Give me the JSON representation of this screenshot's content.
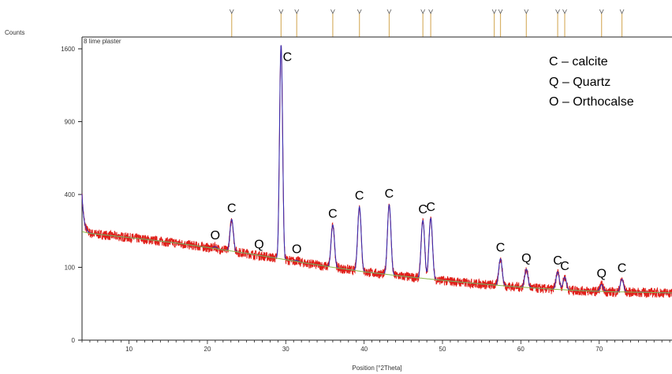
{
  "chart_data": {
    "type": "line",
    "title": "8 lime plaster",
    "ylabel": "Counts",
    "xlabel": "Position [°2Theta]",
    "xlim": [
      4,
      80
    ],
    "ylim": [
      0,
      1600
    ],
    "y_scale": "sqrt",
    "x_ticks": [
      10,
      20,
      30,
      40,
      50,
      60,
      70
    ],
    "y_ticks": [
      0,
      100,
      400,
      900,
      1600
    ],
    "grid": false,
    "legend": {
      "placement": "top-right",
      "entries": [
        "C – calcite",
        "Q – Quartz",
        "O – Orthocalse"
      ]
    },
    "reference_markers": [
      23.1,
      29.4,
      31.4,
      36.0,
      39.4,
      43.2,
      47.5,
      48.5,
      56.6,
      57.4,
      60.7,
      64.7,
      65.6,
      70.3,
      72.9
    ],
    "background": {
      "name": "background",
      "x": [
        4,
        5,
        8,
        12,
        16,
        20,
        24,
        28,
        32,
        36,
        40,
        44,
        48,
        52,
        56,
        60,
        64,
        68,
        72,
        76,
        80
      ],
      "y": [
        222,
        215,
        205,
        192,
        178,
        162,
        146,
        130,
        114,
        100,
        88,
        79,
        71,
        64,
        58,
        53,
        49,
        46,
        44,
        43,
        42
      ]
    },
    "peaks": [
      {
        "label": "O",
        "x": 21.0,
        "y": 165,
        "phase": "Orthocalse"
      },
      {
        "label": "C",
        "x": 23.1,
        "y": 275,
        "phase": "calcite"
      },
      {
        "label": "Q",
        "x": 26.6,
        "y": 135,
        "phase": "Quartz"
      },
      {
        "label": "C",
        "x": 29.4,
        "y": 1640,
        "phase": "calcite"
      },
      {
        "label": "O",
        "x": 31.4,
        "y": 120,
        "phase": "Orthocalse"
      },
      {
        "label": "C",
        "x": 36.0,
        "y": 250,
        "phase": "calcite"
      },
      {
        "label": "C",
        "x": 39.4,
        "y": 335,
        "phase": "calcite"
      },
      {
        "label": "C",
        "x": 43.2,
        "y": 345,
        "phase": "calcite"
      },
      {
        "label": "C",
        "x": 47.5,
        "y": 270,
        "phase": "calcite"
      },
      {
        "label": "C",
        "x": 48.5,
        "y": 280,
        "phase": "calcite"
      },
      {
        "label": "C",
        "x": 57.4,
        "y": 125,
        "phase": "calcite"
      },
      {
        "label": "Q",
        "x": 60.7,
        "y": 95,
        "phase": "Quartz"
      },
      {
        "label": "C",
        "x": 64.7,
        "y": 88,
        "phase": "calcite"
      },
      {
        "label": "C",
        "x": 65.6,
        "y": 75,
        "phase": "calcite"
      },
      {
        "label": "Q",
        "x": 70.3,
        "y": 58,
        "phase": "Quartz"
      },
      {
        "label": "C",
        "x": 72.9,
        "y": 70,
        "phase": "calcite"
      }
    ],
    "colors": {
      "observed": "#e0201a",
      "calculated": "#3a2fb0",
      "background": "#8bb84a",
      "reference": "#d8b268",
      "frame": "#222222"
    }
  }
}
